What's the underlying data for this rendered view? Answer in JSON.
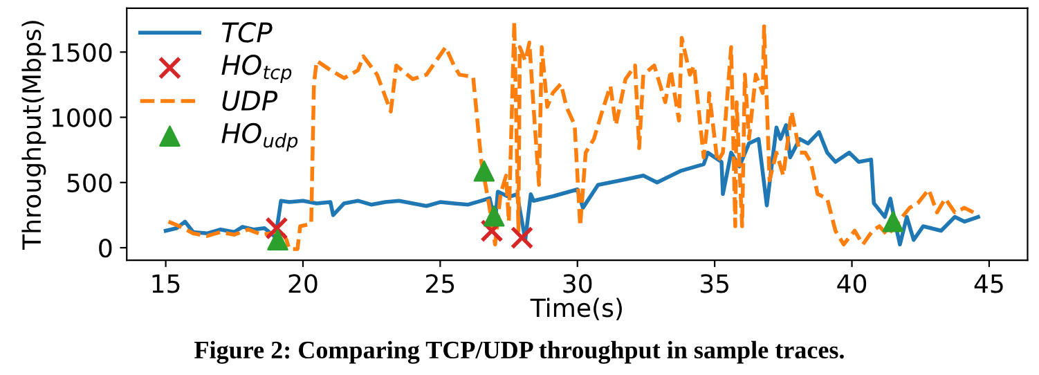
{
  "chart_data": {
    "type": "line",
    "xlabel": "Time(s)",
    "ylabel": "Throughput(Mbps)",
    "xlim": [
      13.58,
      46.4
    ],
    "ylim": [
      -96,
      1836
    ],
    "xticks": [
      15,
      20,
      25,
      30,
      35,
      40,
      45
    ],
    "yticks": [
      0,
      500,
      1000,
      1500
    ],
    "grid": false,
    "legend": "top left",
    "annotations": [
      "Figure 2: Comparing TCP/UDP throughput in sample traces."
    ],
    "series": [
      {
        "name": "TCP",
        "color": "#1f77b4",
        "line_style": "solid",
        "marker": "none",
        "x": [
          15.0,
          15.4,
          15.7,
          16.0,
          16.5,
          17.0,
          17.5,
          17.8,
          18.2,
          18.6,
          19.0,
          19.2,
          19.5,
          20.0,
          20.5,
          21.0,
          21.1,
          21.5,
          22.0,
          22.5,
          23.0,
          23.5,
          24.0,
          24.5,
          25.0,
          25.5,
          26.0,
          26.5,
          26.8,
          27.0,
          27.1,
          27.5,
          27.8,
          28.1,
          28.3,
          28.4,
          29.1,
          30.0,
          30.2,
          30.75,
          31.6,
          32.4,
          32.9,
          33.75,
          34.6,
          34.75,
          35.25,
          35.3,
          35.6,
          35.9,
          36.25,
          36.6,
          36.9,
          37.25,
          37.4,
          37.6,
          37.75,
          38.1,
          38.4,
          38.8,
          39.1,
          39.4,
          39.9,
          40.25,
          40.7,
          40.8,
          41.2,
          41.4,
          41.6,
          41.75,
          42.0,
          42.25,
          42.6,
          43.25,
          43.75,
          44.1,
          44.6
        ],
        "values": [
          130,
          150,
          200,
          120,
          110,
          140,
          120,
          160,
          140,
          150,
          80,
          360,
          350,
          360,
          340,
          350,
          250,
          340,
          360,
          330,
          350,
          360,
          340,
          320,
          350,
          340,
          330,
          360,
          380,
          200,
          430,
          390,
          410,
          60,
          410,
          360,
          394,
          447,
          306,
          482,
          517,
          553,
          500,
          588,
          640,
          729,
          658,
          412,
          729,
          623,
          800,
          834,
          324,
          922,
          834,
          940,
          693,
          834,
          799,
          887,
          729,
          658,
          729,
          658,
          676,
          341,
          236,
          377,
          165,
          25,
          236,
          60,
          165,
          130,
          236,
          200,
          236
        ]
      },
      {
        "name": "HO$_{tcp}$",
        "type": "scatter",
        "color": "#d62728",
        "marker": "cross",
        "x": [
          19.04,
          26.88,
          27.98
        ],
        "values": [
          149,
          130,
          77
        ]
      },
      {
        "name": "UDP",
        "color": "#ff7f0e",
        "line_style": "dashed",
        "marker": "none",
        "x": [
          15.1,
          15.5,
          16.0,
          16.5,
          17.0,
          17.5,
          18.0,
          18.5,
          18.8,
          19.2,
          19.4,
          19.5,
          19.8,
          19.9,
          20.3,
          20.4,
          20.5,
          21.0,
          21.5,
          22.0,
          22.2,
          22.7,
          23.2,
          23.4,
          24.0,
          24.5,
          25.2,
          25.5,
          25.7,
          26.2,
          26.5,
          26.8,
          27.0,
          27.2,
          27.4,
          27.5,
          27.7,
          27.85,
          27.9,
          28.1,
          28.25,
          28.4,
          28.6,
          28.7,
          28.9,
          29.1,
          29.4,
          29.6,
          29.9,
          30.1,
          30.3,
          30.6,
          30.9,
          31.2,
          31.4,
          31.75,
          32.1,
          32.25,
          32.4,
          32.8,
          33.2,
          33.4,
          33.7,
          33.8,
          34.1,
          34.25,
          34.6,
          34.75,
          34.8,
          35.1,
          35.3,
          35.6,
          35.75,
          35.8,
          36.0,
          36.1,
          36.25,
          36.5,
          36.75,
          36.8,
          37.0,
          37.25,
          37.5,
          37.8,
          38.1,
          38.3,
          38.5,
          38.75,
          39.1,
          39.4,
          39.7,
          40.1,
          40.4,
          40.75,
          41.0,
          41.3,
          41.7,
          42.1,
          42.4,
          42.8,
          43.1,
          43.4,
          43.75,
          44.1,
          44.6
        ],
        "values": [
          200,
          165,
          110,
          90,
          120,
          100,
          140,
          100,
          110,
          130,
          60,
          -10,
          -10,
          165,
          183,
          1257,
          1433,
          1362,
          1300,
          1360,
          1468,
          1327,
          1045,
          1397,
          1292,
          1327,
          1538,
          1397,
          1327,
          1310,
          658,
          306,
          25,
          412,
          553,
          200,
          1732,
          130,
          1538,
          1433,
          1573,
          1080,
          482,
          1538,
          1080,
          1186,
          1257,
          1080,
          940,
          165,
          729,
          834,
          1045,
          1240,
          940,
          1292,
          1397,
          764,
          1327,
          1397,
          1116,
          1362,
          975,
          1609,
          1327,
          1397,
          693,
          975,
          1186,
          658,
          729,
          1538,
          165,
          1116,
          165,
          1327,
          834,
          1327,
          1186,
          1697,
          517,
          729,
          553,
          1045,
          729,
          729,
          658,
          412,
          377,
          130,
          25,
          130,
          25,
          130,
          165,
          95,
          200,
          306,
          341,
          447,
          271,
          377,
          271,
          306,
          253
        ]
      },
      {
        "name": "HO$_{udp}$",
        "type": "scatter",
        "color": "#2ca02c",
        "marker": "triangle",
        "x": [
          19.08,
          26.6,
          26.96,
          41.5
        ],
        "values": [
          60,
          588,
          243,
          200
        ]
      }
    ]
  }
}
